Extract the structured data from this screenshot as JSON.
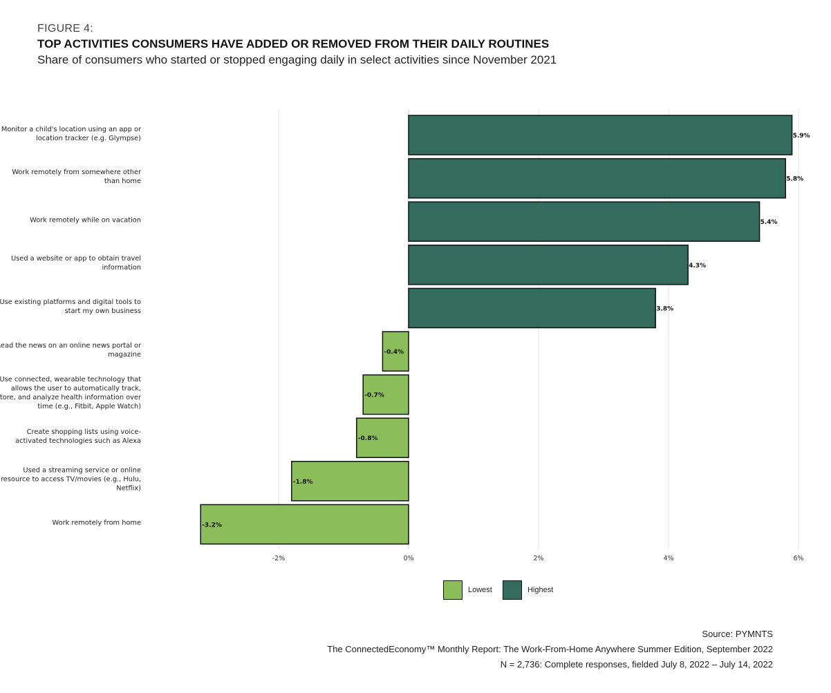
{
  "figure_label": "FIGURE 4:",
  "chart_data": {
    "type": "bar",
    "orientation": "horizontal",
    "title": "TOP ACTIVITIES CONSUMERS HAVE ADDED OR REMOVED FROM THEIR DAILY ROUTINES",
    "subtitle": "Share of consumers who started or stopped engaging daily in select activities since November 2021",
    "categories": [
      "Monitor a child's location using an app or location tracker (e.g. Glympse)",
      "Work remotely from somewhere other than home",
      "Work remotely while on vacation",
      "Used a website or app to obtain travel information",
      "Use existing platforms and digital tools to start my own business",
      "Read the news on an online news portal or magazine",
      "Use connected, wearable technology that allows the user to automatically track, store, and analyze health information over time (e.g., Fitbit, Apple Watch)",
      "Create shopping lists using voice-activated technologies such as Alexa",
      "Used a streaming service or online resource to access TV/movies (e.g., Hulu, Netflix)",
      "Work remotely from home"
    ],
    "values": [
      5.9,
      5.8,
      5.4,
      4.3,
      3.8,
      -0.4,
      -0.7,
      -0.8,
      -1.8,
      -3.2
    ],
    "data_labels": [
      "5.9%",
      "5.8%",
      "5.4%",
      "4.3%",
      "3.8%",
      "-0.4%",
      "-0.7%",
      "-0.8%",
      "-1.8%",
      "-3.2%"
    ],
    "groups": [
      "Highest",
      "Highest",
      "Highest",
      "Highest",
      "Highest",
      "Lowest",
      "Lowest",
      "Lowest",
      "Lowest",
      "Lowest"
    ],
    "xlim": [
      -3.3,
      6.1
    ],
    "xticks": [
      -2,
      0,
      2,
      4,
      6
    ],
    "xtick_labels": [
      "-2%",
      "0%",
      "2%",
      "4%",
      "6%"
    ],
    "grid": "vertical",
    "legend": {
      "position": "bottom",
      "entries": [
        {
          "name": "Lowest",
          "color": "#8bbd5a"
        },
        {
          "name": "Highest",
          "color": "#336b5c"
        }
      ]
    },
    "colors": {
      "Lowest": "#8bbd5a",
      "Highest": "#336b5c"
    }
  },
  "footer": {
    "source": "Source: PYMNTS",
    "report": "The ConnectedEconomy™ Monthly Report: The Work-From-Home Anywhere Summer Edition, September 2022",
    "sample": "N = 2,736: Complete responses, fielded July 8, 2022 – July 14, 2022"
  }
}
